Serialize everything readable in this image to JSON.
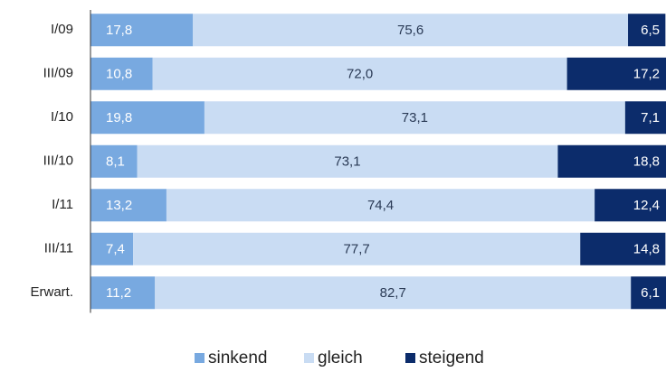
{
  "chart_data": {
    "type": "stacked_bar_horizontal",
    "categories": [
      "I/09",
      "III/09",
      "I/10",
      "III/10",
      "I/11",
      "III/11",
      "Erwart."
    ],
    "series": [
      {
        "name": "sinkend",
        "color": "#78a9e0",
        "values": [
          17.8,
          10.8,
          19.8,
          8.1,
          13.2,
          7.4,
          11.2
        ],
        "value_labels": [
          "17,8",
          "10,8",
          "19,8",
          "8,1",
          "13,2",
          "7,4",
          "11,2"
        ]
      },
      {
        "name": "gleich",
        "color": "#c9dcf3",
        "values": [
          75.6,
          72.0,
          73.1,
          73.1,
          74.4,
          77.7,
          82.7
        ],
        "value_labels": [
          "75,6",
          "72,0",
          "73,1",
          "73,1",
          "74,4",
          "77,7",
          "82,7"
        ]
      },
      {
        "name": "steigend",
        "color": "#0c2c6b",
        "values": [
          6.5,
          17.2,
          7.1,
          18.8,
          12.4,
          14.8,
          6.1
        ],
        "value_labels": [
          "6,5",
          "17,2",
          "7,1",
          "18,8",
          "12,4",
          "14,8",
          "6,1"
        ]
      }
    ],
    "xlim": [
      0,
      100
    ]
  }
}
